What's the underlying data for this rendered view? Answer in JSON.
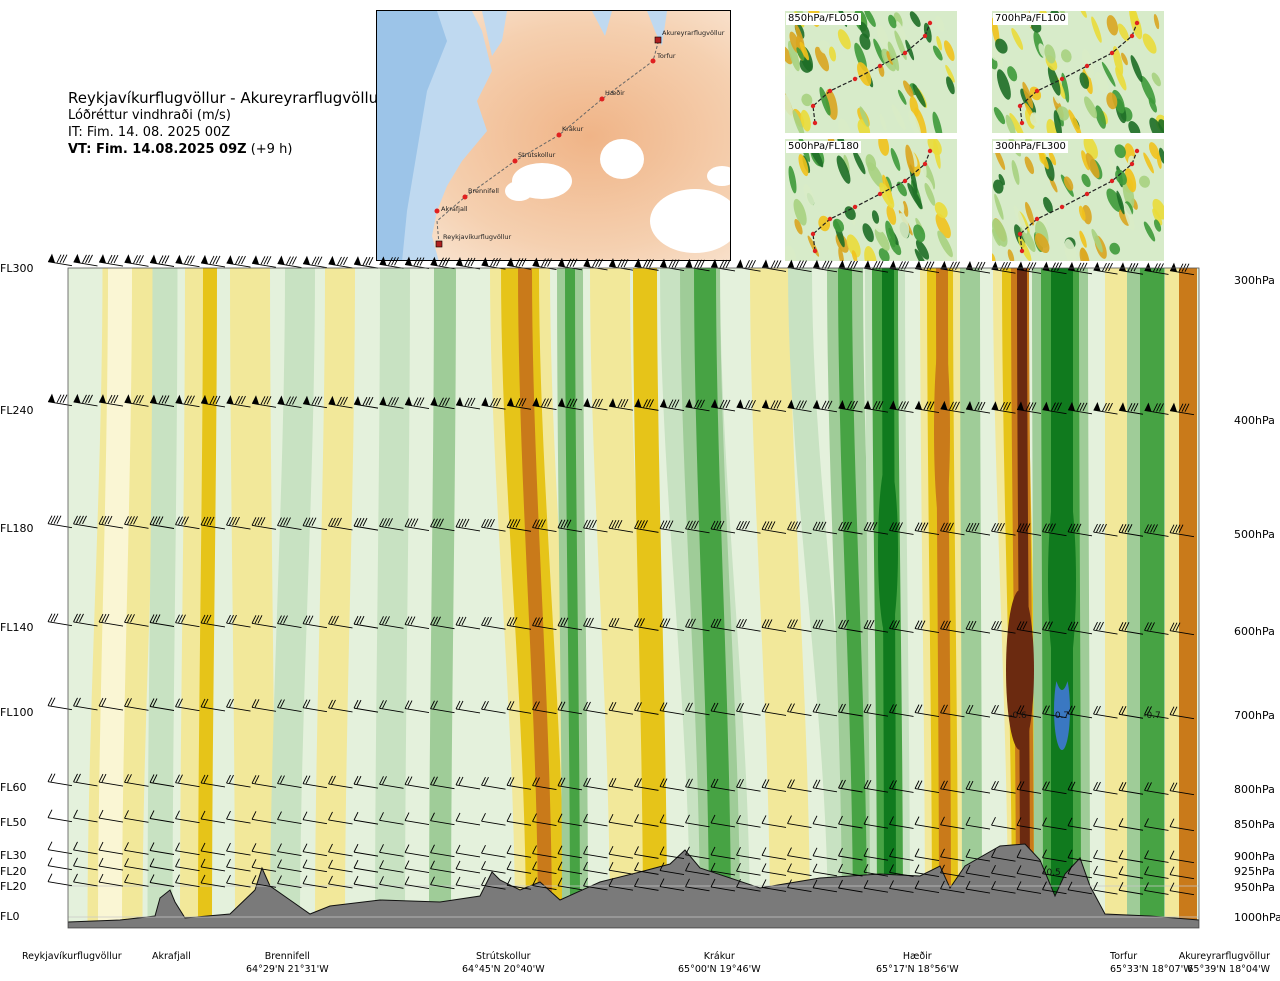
{
  "title": {
    "route": "Reykjavíkurflugvöllur - Akureyrarflugvöllur",
    "quantity": "Lóðréttur vindhraði (m/s)",
    "it_line": "IT: Fim. 14. 08. 2025 00Z",
    "vt_bold": "VT: Fim. 14.08.2025 09Z",
    "vt_offset": "(+9 h)"
  },
  "route_map": {
    "waypoints": [
      {
        "name": "Akureyrarflugvöllur",
        "kind": "airport"
      },
      {
        "name": "Torfur",
        "kind": "point"
      },
      {
        "name": "Hæðir",
        "kind": "point"
      },
      {
        "name": "Krákur",
        "kind": "point"
      },
      {
        "name": "Strútskollur",
        "kind": "point"
      },
      {
        "name": "Brennifell",
        "kind": "point"
      },
      {
        "name": "Akrafjall",
        "kind": "point"
      },
      {
        "name": "Reykjavíkurflugvöllur",
        "kind": "airport"
      }
    ]
  },
  "level_maps": [
    {
      "label": "850hPa/FL050"
    },
    {
      "label": "700hPa/FL100"
    },
    {
      "label": "500hPa/FL180"
    },
    {
      "label": "300hPa/FL300"
    }
  ],
  "axis": {
    "flight_levels": [
      "FL300",
      "FL240",
      "FL180",
      "FL140",
      "FL100",
      "FL60",
      "FL50",
      "FL30",
      "FL20",
      "FL20",
      "FL0"
    ],
    "pressure_levels": [
      "300hPa",
      "400hPa",
      "500hPa",
      "600hPa",
      "700hPa",
      "800hPa",
      "850hPa",
      "900hPa",
      "925hPa",
      "950hPa",
      "1000hPa"
    ]
  },
  "locations": [
    {
      "name": "Reykjavíkurflugvöllur",
      "coord": ""
    },
    {
      "name": "Akrafjall",
      "coord": ""
    },
    {
      "name": "Brennifell",
      "coord": "64°29'N 21°31'W"
    },
    {
      "name": "Strútskollur",
      "coord": "64°45'N 20°40'W"
    },
    {
      "name": "Krákur",
      "coord": "65°00'N 19°46'W"
    },
    {
      "name": "Hæðir",
      "coord": "65°17'N 18°56'W"
    },
    {
      "name": "Torfur",
      "coord": "65°33'N 18°07'W"
    },
    {
      "name": "Akureyrarflugvöllur",
      "coord": "65°39'N 18°04'W"
    }
  ],
  "chart_data": {
    "type": "heatmap",
    "title": "Lóðréttur vindhraði (m/s)",
    "xlabel": "",
    "ylabel": "",
    "y_levels_hpa": [
      300,
      400,
      500,
      600,
      700,
      800,
      850,
      900,
      925,
      950,
      1000
    ],
    "annotations": [
      {
        "text": "-0.6",
        "location": "Hæðir–Torfur",
        "level_hpa": 700
      },
      {
        "text": "0.7",
        "location": "Hæðir–Torfur",
        "level_hpa": 700
      },
      {
        "text": "-0.7",
        "location": "Torfur",
        "level_hpa": 700
      },
      {
        "text": "-0.5",
        "location": "Torfur",
        "level_hpa": 940
      }
    ],
    "colors": {
      "strong_down": "#6b2a10",
      "mod_down": "#c97a1a",
      "light_down": "#e6c419",
      "weak_down": "#f2e89a",
      "near_zero_down": "#faf6d4",
      "near_zero_up": "#e4f1dc",
      "weak_up": "#c8e2c2",
      "light_up": "#9fcc98",
      "mod_up": "#47a344",
      "strong_up": "#107a1e",
      "very_strong_up": "#3a78c2",
      "terrain": "#7a7a7a"
    },
    "grid": false,
    "wind_barbs": true
  }
}
